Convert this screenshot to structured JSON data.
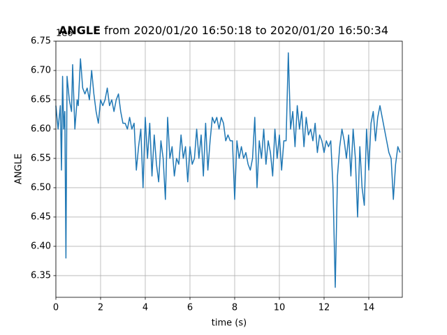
{
  "chart_data": {
    "type": "line",
    "title": [
      "ANGLE",
      " from 2020/01/20 16:50:18 to 2020/01/20 16:50:34"
    ],
    "x_label": "time (s)",
    "y_label": "ANGLE",
    "y_offset_label": "1e6",
    "xlim": [
      0,
      15.5
    ],
    "ylim": [
      6.313,
      6.75
    ],
    "xticks": [
      0,
      2,
      4,
      6,
      8,
      10,
      12,
      14
    ],
    "yticks": [
      {
        "value": 6.35,
        "label": "6.35"
      },
      {
        "value": 6.4,
        "label": "6.40"
      },
      {
        "value": 6.45,
        "label": "6.45"
      },
      {
        "value": 6.5,
        "label": "6.50"
      },
      {
        "value": 6.55,
        "label": "6.55"
      },
      {
        "value": 6.6,
        "label": "6.60"
      },
      {
        "value": 6.65,
        "label": "6.65"
      },
      {
        "value": 6.7,
        "label": "6.70"
      },
      {
        "value": 6.75,
        "label": "6.75"
      }
    ],
    "grid": true,
    "series": [
      {
        "color": "#1f77b4",
        "x": [
          0,
          0.1,
          0.2,
          0.25,
          0.3,
          0.35,
          0.4,
          0.45,
          0.5,
          0.6,
          0.7,
          0.75,
          0.85,
          0.95,
          1.0,
          1.1,
          1.2,
          1.3,
          1.4,
          1.5,
          1.6,
          1.7,
          1.8,
          1.9,
          2.0,
          2.1,
          2.2,
          2.3,
          2.4,
          2.5,
          2.6,
          2.7,
          2.8,
          2.9,
          3.0,
          3.1,
          3.2,
          3.3,
          3.4,
          3.5,
          3.6,
          3.7,
          3.8,
          3.9,
          4.0,
          4.1,
          4.2,
          4.3,
          4.4,
          4.5,
          4.6,
          4.7,
          4.8,
          4.9,
          5.0,
          5.1,
          5.2,
          5.3,
          5.4,
          5.5,
          5.6,
          5.7,
          5.8,
          5.9,
          6.0,
          6.1,
          6.2,
          6.3,
          6.4,
          6.5,
          6.6,
          6.7,
          6.8,
          6.9,
          7.0,
          7.1,
          7.2,
          7.3,
          7.4,
          7.5,
          7.6,
          7.7,
          7.8,
          7.9,
          8.0,
          8.1,
          8.2,
          8.3,
          8.4,
          8.5,
          8.6,
          8.7,
          8.8,
          8.9,
          9.0,
          9.1,
          9.2,
          9.3,
          9.4,
          9.5,
          9.6,
          9.7,
          9.8,
          9.9,
          10.0,
          10.1,
          10.2,
          10.3,
          10.4,
          10.5,
          10.6,
          10.7,
          10.8,
          10.9,
          11.0,
          11.1,
          11.2,
          11.3,
          11.4,
          11.5,
          11.6,
          11.7,
          11.8,
          11.9,
          12.0,
          12.1,
          12.2,
          12.3,
          12.4,
          12.5,
          12.6,
          12.7,
          12.8,
          12.9,
          13.0,
          13.1,
          13.2,
          13.3,
          13.4,
          13.5,
          13.6,
          13.7,
          13.8,
          13.9,
          14.0,
          14.1,
          14.2,
          14.3,
          14.4,
          14.5,
          14.6,
          14.7,
          14.8,
          14.9,
          15.0,
          15.1,
          15.2,
          15.3,
          15.4
        ],
        "values": [
          6.64,
          6.6,
          6.64,
          6.53,
          6.69,
          6.6,
          6.63,
          6.38,
          6.69,
          6.65,
          6.63,
          6.71,
          6.6,
          6.65,
          6.64,
          6.72,
          6.67,
          6.66,
          6.67,
          6.65,
          6.7,
          6.66,
          6.63,
          6.61,
          6.65,
          6.64,
          6.65,
          6.67,
          6.64,
          6.65,
          6.63,
          6.65,
          6.66,
          6.63,
          6.61,
          6.61,
          6.6,
          6.62,
          6.6,
          6.61,
          6.53,
          6.57,
          6.6,
          6.5,
          6.62,
          6.55,
          6.61,
          6.52,
          6.59,
          6.54,
          6.51,
          6.58,
          6.55,
          6.48,
          6.62,
          6.55,
          6.57,
          6.52,
          6.55,
          6.54,
          6.59,
          6.55,
          6.57,
          6.51,
          6.57,
          6.54,
          6.55,
          6.6,
          6.55,
          6.59,
          6.52,
          6.61,
          6.53,
          6.58,
          6.62,
          6.61,
          6.62,
          6.6,
          6.62,
          6.61,
          6.58,
          6.59,
          6.58,
          6.58,
          6.48,
          6.58,
          6.55,
          6.57,
          6.55,
          6.56,
          6.54,
          6.53,
          6.55,
          6.62,
          6.5,
          6.58,
          6.55,
          6.6,
          6.54,
          6.58,
          6.56,
          6.52,
          6.6,
          6.55,
          6.59,
          6.53,
          6.58,
          6.58,
          6.73,
          6.6,
          6.63,
          6.57,
          6.64,
          6.6,
          6.63,
          6.57,
          6.62,
          6.59,
          6.6,
          6.58,
          6.61,
          6.56,
          6.59,
          6.58,
          6.56,
          6.58,
          6.57,
          6.58,
          6.5,
          6.33,
          6.52,
          6.57,
          6.6,
          6.58,
          6.55,
          6.59,
          6.52,
          6.6,
          6.55,
          6.45,
          6.57,
          6.5,
          6.47,
          6.6,
          6.53,
          6.61,
          6.63,
          6.58,
          6.62,
          6.64,
          6.62,
          6.6,
          6.58,
          6.56,
          6.55,
          6.48,
          6.54,
          6.57,
          6.56
        ]
      }
    ]
  }
}
